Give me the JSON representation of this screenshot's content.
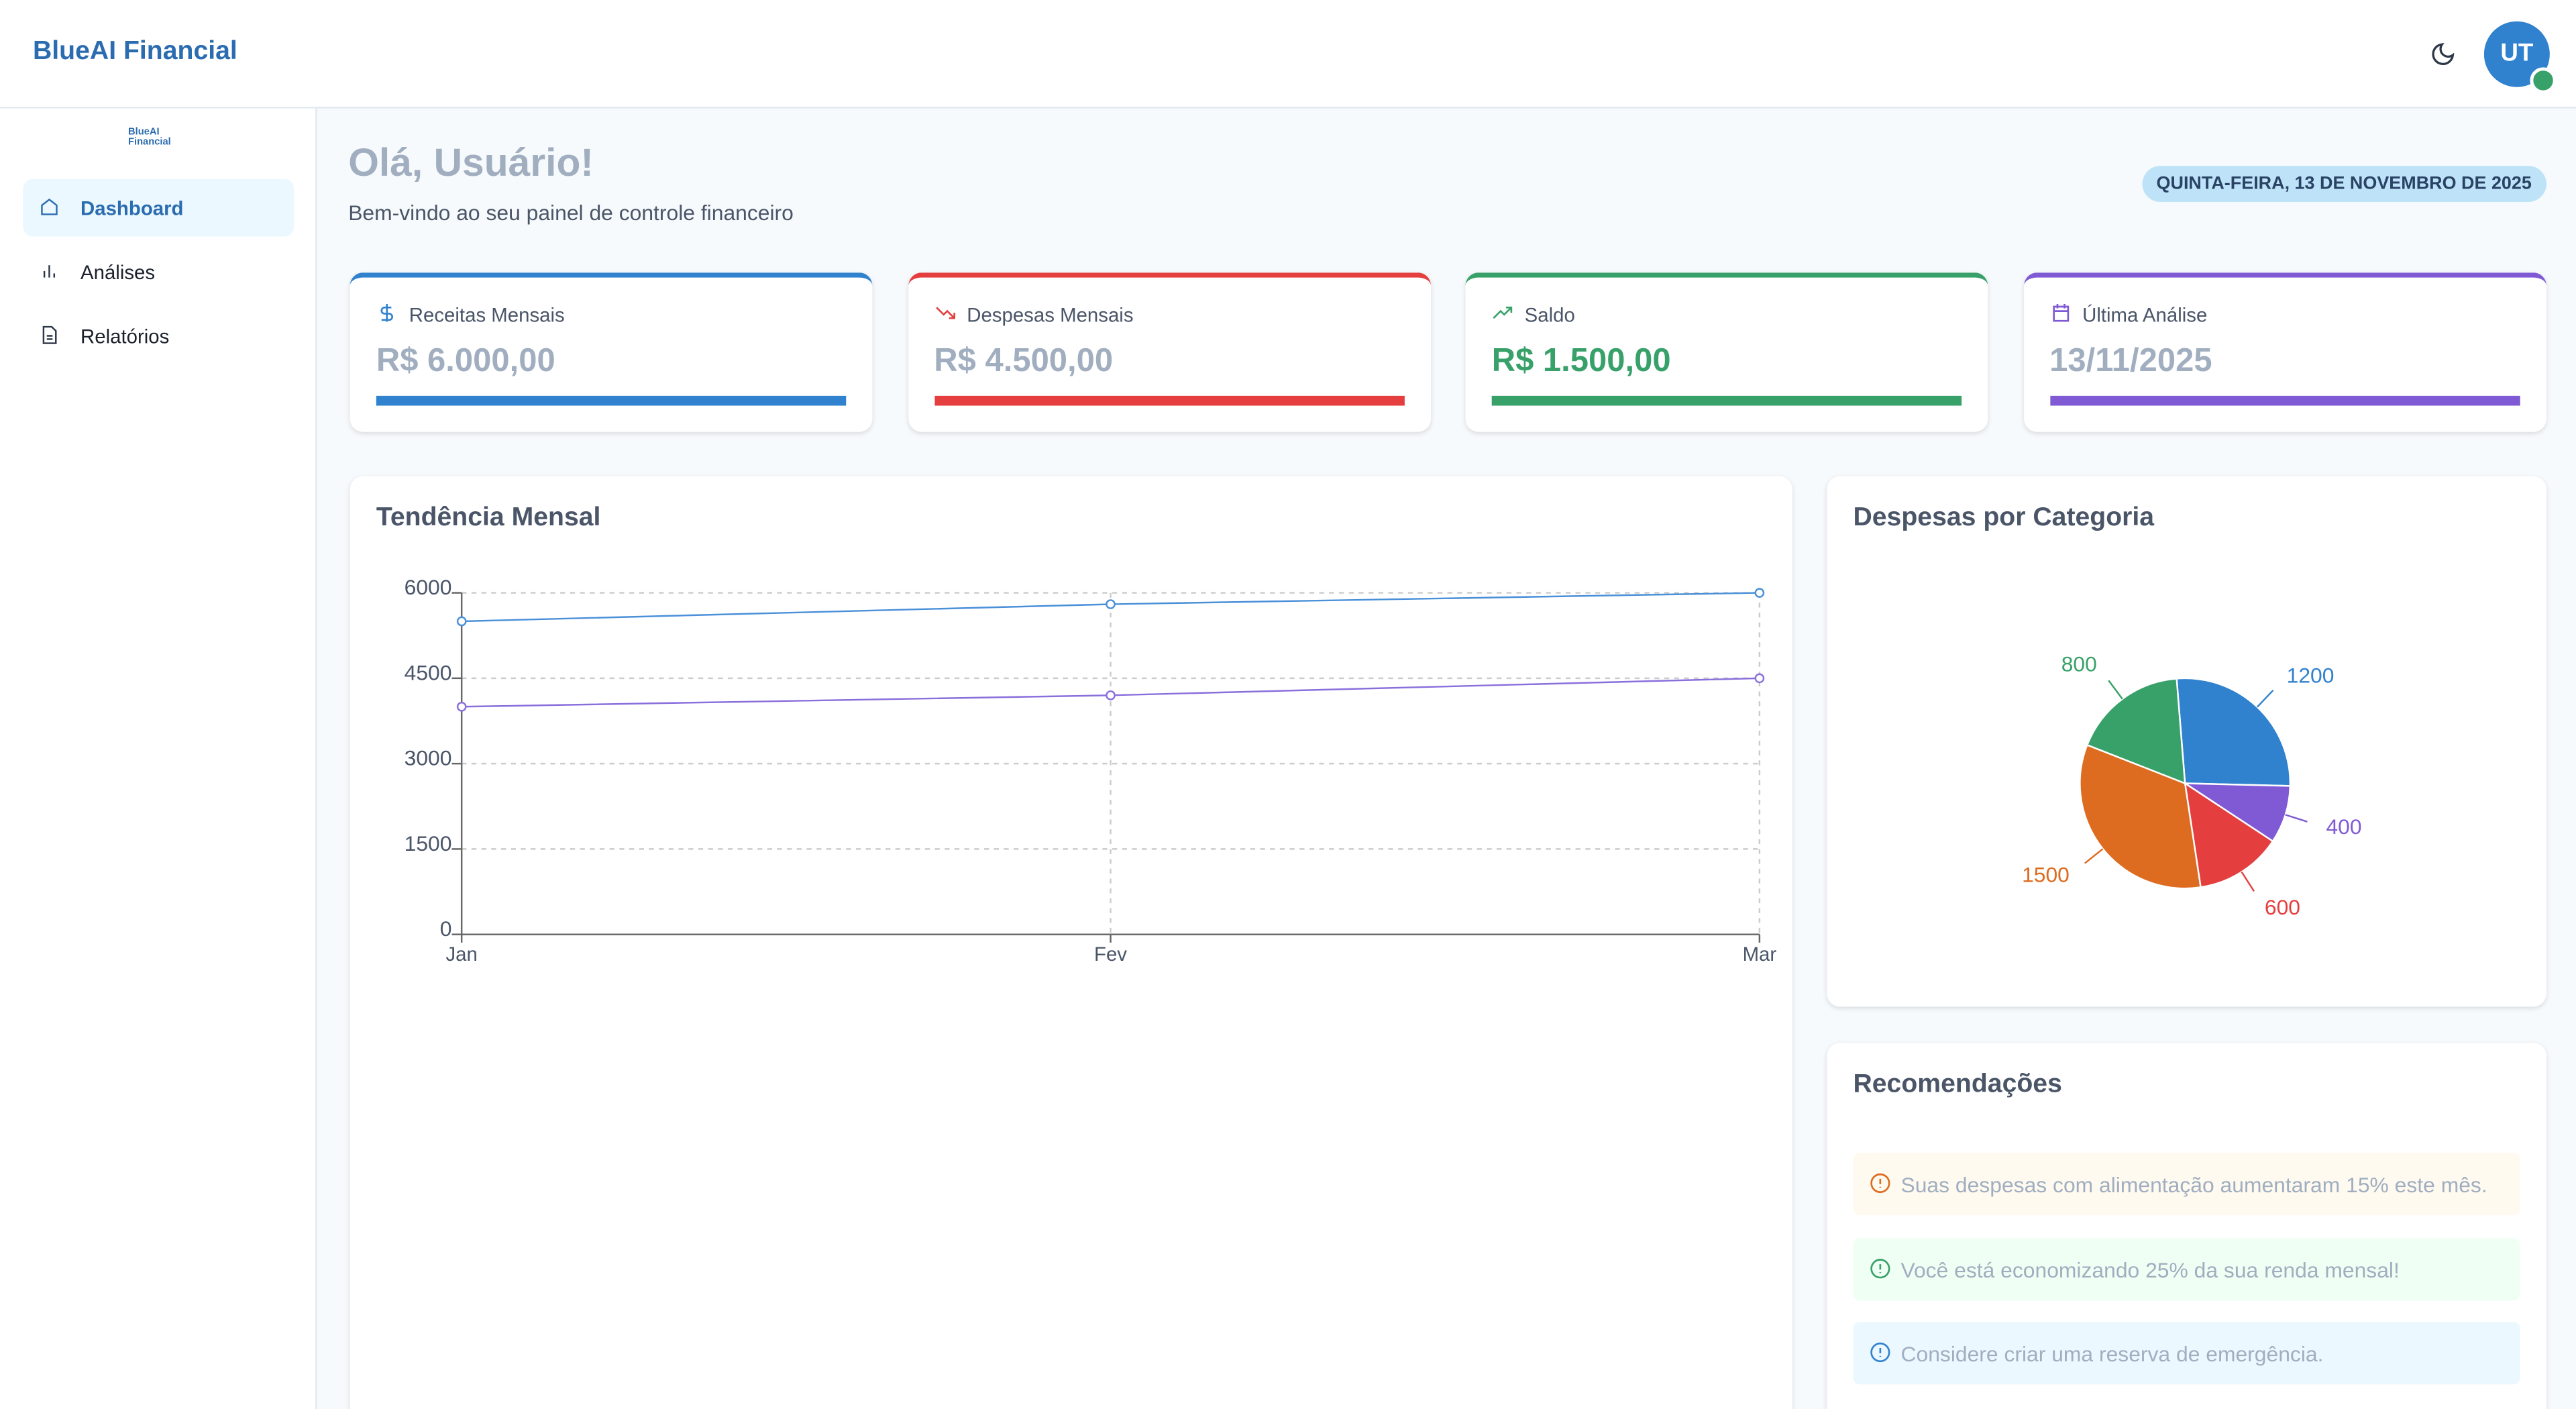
{
  "header": {
    "brand": "BlueAI Financial",
    "avatar": "UT"
  },
  "sidebar": {
    "logo": "BlueAI Financial",
    "nav": [
      "Dashboard",
      "Análises",
      "Relatórios"
    ]
  },
  "greeting": {
    "title": "Olá, Usuário!",
    "subtitle": "Bem-vindo ao seu painel de controle financeiro",
    "date": "QUINTA-FEIRA, 13 DE NOVEMBRO DE 2025"
  },
  "cards": [
    {
      "label": "Receitas Mensais",
      "value": "R$ 6.000,00",
      "color": "#3182ce"
    },
    {
      "label": "Despesas Mensais",
      "value": "R$ 4.500,00",
      "color": "#e53e3e"
    },
    {
      "label": "Saldo",
      "value": "R$ 1.500,00",
      "color": "#38a169"
    },
    {
      "label": "Última Análise",
      "value": "13/11/2025",
      "color": "#805ad5"
    }
  ],
  "chart_data": [
    {
      "type": "line",
      "title": "Tendência Mensal",
      "categories": [
        "Jan",
        "Fev",
        "Mar"
      ],
      "series": [
        {
          "color": "#4a90d9",
          "values": [
            5500,
            5800,
            6000
          ]
        },
        {
          "color": "#8a6fdc",
          "values": [
            4000,
            4200,
            4500
          ]
        }
      ],
      "ylim": [
        0,
        6000
      ],
      "yticks": [
        0,
        1500,
        3000,
        4500,
        6000
      ],
      "grid": true
    },
    {
      "type": "pie",
      "title": "Despesas por Categoria",
      "values": [
        1200,
        400,
        600,
        1500,
        800
      ],
      "colors": [
        "#3182ce",
        "#805ad5",
        "#e53e3e",
        "#dd6b20",
        "#38a169"
      ]
    }
  ],
  "recommendations": {
    "title": "Recomendações",
    "items": [
      {
        "text": "Suas despesas com alimentação aumentaram 15% este mês.",
        "color": "#dd6b20",
        "bg": "#fffaf0"
      },
      {
        "text": "Você está economizando 25% da sua renda mensal!",
        "color": "#38a169",
        "bg": "#f0fff4"
      },
      {
        "text": "Considere criar uma reserva de emergência.",
        "color": "#3182ce",
        "bg": "#ebf8ff"
      }
    ]
  }
}
